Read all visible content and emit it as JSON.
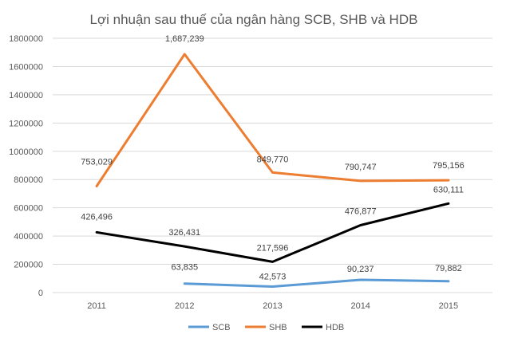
{
  "chart_data": {
    "type": "line",
    "title": "Lợi nhuận sau thuế của ngân hàng SCB, SHB và HDB",
    "xlabel": "",
    "ylabel": "",
    "categories": [
      "2011",
      "2012",
      "2013",
      "2014",
      "2015"
    ],
    "ylim": [
      0,
      1800000
    ],
    "yticks": [
      "0",
      "200000",
      "400000",
      "600000",
      "800000",
      "1000000",
      "1200000",
      "1400000",
      "1600000",
      "1800000"
    ],
    "grid": true,
    "legend_position": "bottom",
    "series": [
      {
        "name": "SCB",
        "color": "#5b9bd5",
        "values": [
          null,
          63835,
          42573,
          90237,
          79882
        ],
        "labels": [
          null,
          "63,835",
          "42,573",
          "90,237",
          "79,882"
        ]
      },
      {
        "name": "SHB",
        "color": "#ed7d31",
        "values": [
          753029,
          1687239,
          849770,
          790747,
          795156
        ],
        "labels": [
          "753,029",
          "1,687,239",
          "849,770",
          "790,747",
          "795,156"
        ]
      },
      {
        "name": "HDB",
        "color": "#000000",
        "values": [
          426496,
          326431,
          217596,
          476877,
          630111
        ],
        "labels": [
          "426,496",
          "326,431",
          "217,596",
          "476,877",
          "630,111"
        ]
      }
    ]
  }
}
